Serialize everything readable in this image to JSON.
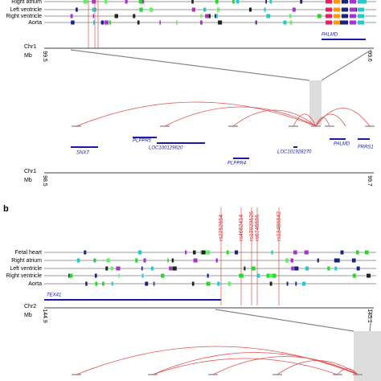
{
  "panel_a": {
    "tracks": [
      "Right atrium",
      "Left ventricle",
      "Right ventricle",
      "Aorta"
    ],
    "zoom_gene": "PALMD",
    "axis_top": {
      "chrom": "Chr1",
      "unit": "Mb",
      "start": "99.5",
      "end": "99.6"
    },
    "genes": [
      "SNX7",
      "PLPPR5",
      "LOC100129620",
      "PLPPR4",
      "LOC101928270",
      "PALMD",
      "FRRS1"
    ],
    "axis_bottom": {
      "chrom": "Chr1",
      "unit": "Mb",
      "start": "98.5",
      "end": "99.7"
    }
  },
  "panel_b": {
    "label": "b",
    "snps": [
      "rs2252654",
      "rs4662414",
      "rs13929626",
      "rs6745656",
      "rs13486842"
    ],
    "tracks": [
      "Fetal heart",
      "Right atrium",
      "Left ventricle",
      "Right ventricle",
      "Aorta"
    ],
    "gene": "TEX41",
    "axis": {
      "chrom": "Chr2",
      "unit": "Mb",
      "start": "144.9",
      "end": "145.1"
    }
  }
}
